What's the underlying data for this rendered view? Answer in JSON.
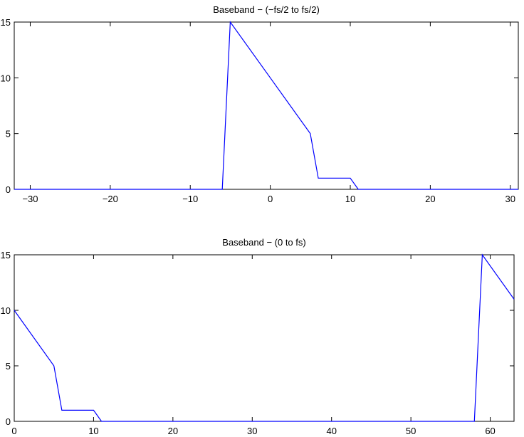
{
  "chart_data": [
    {
      "type": "line",
      "title": "Baseband − (−fs/2 to fs/2)",
      "xlabel": "",
      "ylabel": "",
      "xlim": [
        -32,
        31
      ],
      "ylim": [
        0,
        15
      ],
      "xticks": [
        -30,
        -20,
        -10,
        0,
        10,
        20,
        30
      ],
      "xtick_labels": [
        "−30",
        "−20",
        "−10",
        "0",
        "10",
        "20",
        "30"
      ],
      "yticks": [
        0,
        5,
        10,
        15
      ],
      "ytick_labels": [
        "0",
        "5",
        "10",
        "15"
      ],
      "grid": false,
      "series": [
        {
          "color": "#0000ff",
          "x": [
            -32,
            -6,
            -5,
            5,
            6,
            10,
            11,
            31
          ],
          "y": [
            0,
            0,
            15,
            5,
            1,
            1,
            0,
            0
          ]
        }
      ]
    },
    {
      "type": "line",
      "title": "Baseband − (0 to fs)",
      "xlabel": "",
      "ylabel": "",
      "xlim": [
        0,
        63
      ],
      "ylim": [
        0,
        15
      ],
      "xticks": [
        0,
        10,
        20,
        30,
        40,
        50,
        60
      ],
      "xtick_labels": [
        "0",
        "10",
        "20",
        "30",
        "40",
        "50",
        "60"
      ],
      "yticks": [
        0,
        5,
        10,
        15
      ],
      "ytick_labels": [
        "0",
        "5",
        "10",
        "15"
      ],
      "grid": false,
      "series": [
        {
          "color": "#0000ff",
          "x": [
            0,
            5,
            6,
            10,
            11,
            58,
            59,
            63
          ],
          "y": [
            10,
            5,
            1,
            1,
            0,
            0,
            15,
            11
          ]
        }
      ]
    }
  ]
}
